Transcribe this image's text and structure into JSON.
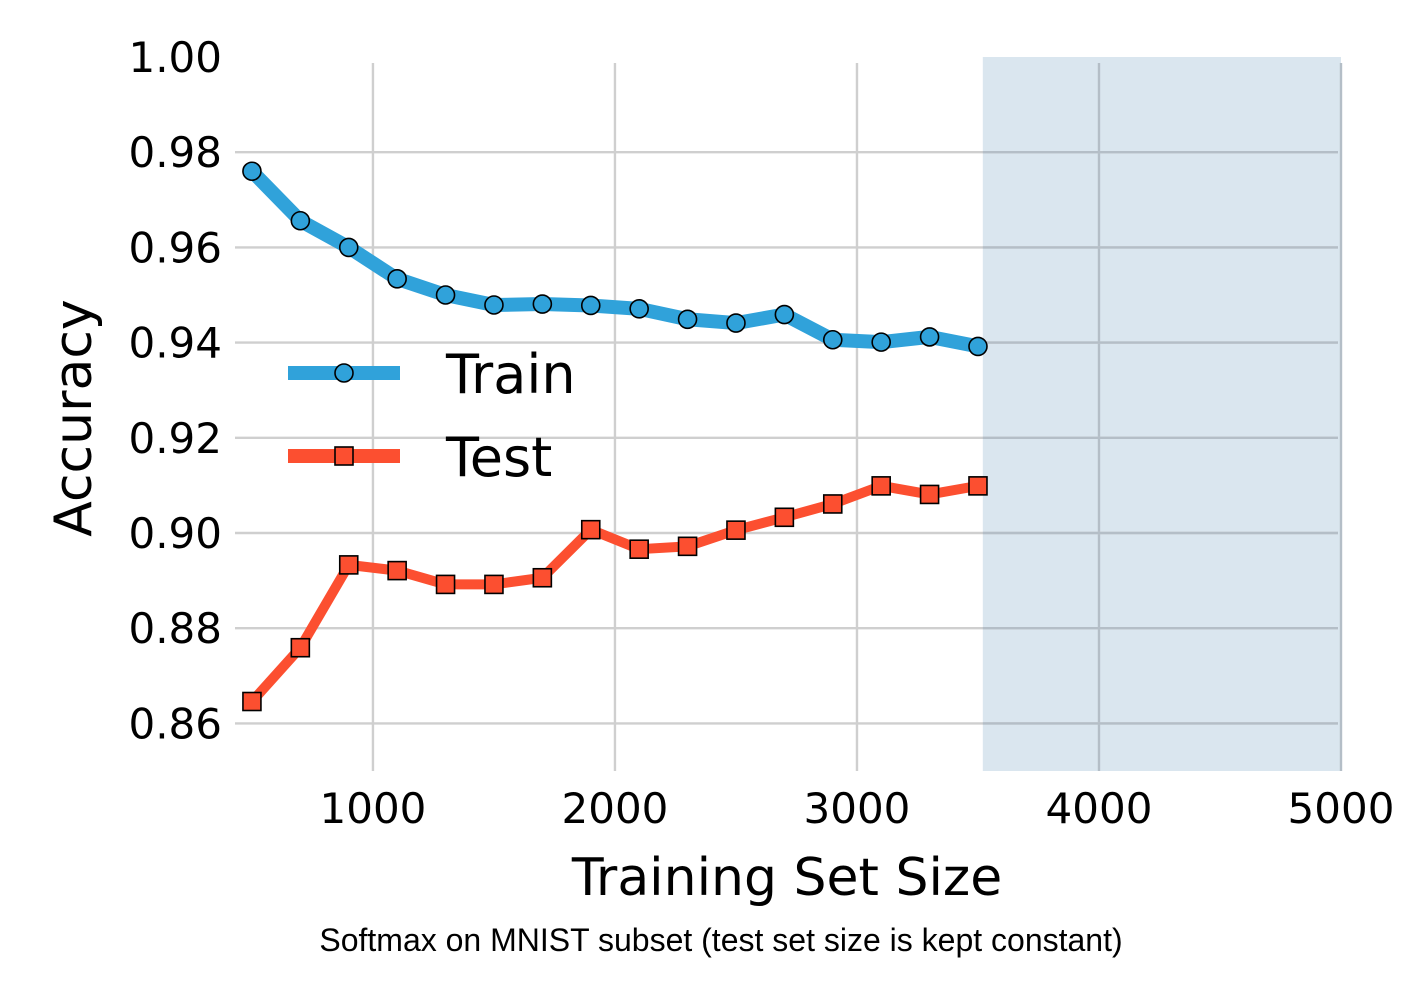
{
  "chart_data": {
    "type": "line",
    "xlabel": "Training Set Size",
    "ylabel": "Accuracy",
    "caption": "Softmax on MNIST subset (test set size is kept constant)",
    "xlim": [
      430,
      5000
    ],
    "ylim": [
      0.85,
      1.0
    ],
    "xticks": [
      1000,
      2000,
      3000,
      4000,
      5000
    ],
    "yticks": [
      0.86,
      0.88,
      0.9,
      0.92,
      0.94,
      0.96,
      0.98,
      1.0
    ],
    "xtick_labels": [
      "1000",
      "2000",
      "3000",
      "4000",
      "5000"
    ],
    "ytick_labels": [
      "0.86",
      "0.88",
      "0.90",
      "0.92",
      "0.94",
      "0.96",
      "0.98",
      "1.00"
    ],
    "grid": true,
    "legend": "center-left",
    "shaded_region": {
      "x": [
        3520,
        5000
      ],
      "color": "#dae6ef"
    },
    "x": [
      500,
      700,
      900,
      1100,
      1300,
      1500,
      1700,
      1900,
      2100,
      2300,
      2500,
      2700,
      2900,
      3100,
      3300,
      3500
    ],
    "series": [
      {
        "name": "Train",
        "color": "#30a2da",
        "marker": "circle",
        "values": [
          0.976,
          0.9656,
          0.96,
          0.9534,
          0.95,
          0.9479,
          0.9481,
          0.9478,
          0.9471,
          0.9449,
          0.9441,
          0.9459,
          0.9406,
          0.9401,
          0.9412,
          0.9392
        ]
      },
      {
        "name": "Test",
        "color": "#fc4f30",
        "marker": "square",
        "values": [
          0.8646,
          0.8759,
          0.8933,
          0.8921,
          0.8892,
          0.8892,
          0.8906,
          0.9007,
          0.8966,
          0.8972,
          0.9006,
          0.9033,
          0.9061,
          0.9099,
          0.9081,
          0.9099
        ]
      }
    ]
  }
}
